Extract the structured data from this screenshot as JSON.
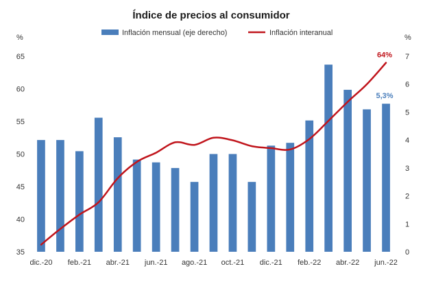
{
  "chart_data": {
    "type": "bar+line",
    "title": "Índice de precios al consumidor",
    "legend": {
      "position": "top",
      "bar_label": "Inflación mensual (eje derecho)",
      "line_label": "Inflación interanual"
    },
    "left_axis": {
      "unit": "%",
      "range": [
        35,
        65
      ],
      "ticks": [
        35,
        40,
        45,
        50,
        55,
        60,
        65
      ]
    },
    "right_axis": {
      "unit": "%",
      "range": [
        0,
        7
      ],
      "ticks": [
        0,
        1,
        2,
        3,
        4,
        5,
        6,
        7
      ]
    },
    "categories": [
      "dic.-20",
      "ene.-21",
      "feb.-21",
      "mar.-21",
      "abr.-21",
      "may.-21",
      "jun.-21",
      "jul.-21",
      "ago.-21",
      "sep.-21",
      "oct.-21",
      "nov.-21",
      "dic.-21",
      "ene.-22",
      "feb.-22",
      "mar.-22",
      "abr.-22",
      "may.-22",
      "jun.-22"
    ],
    "x_tick_labels": [
      "dic.-20",
      "feb.-21",
      "abr.-21",
      "jun.-21",
      "ago.-21",
      "oct.-21",
      "dic.-21",
      "feb.-22",
      "abr.-22",
      "jun.-22"
    ],
    "series": [
      {
        "name": "Inflación mensual (eje derecho)",
        "type": "bar",
        "axis": "right",
        "color": "#4a7ebb",
        "values": [
          4.0,
          4.0,
          3.6,
          4.8,
          4.1,
          3.3,
          3.2,
          3.0,
          2.5,
          3.5,
          3.5,
          2.5,
          3.8,
          3.9,
          4.7,
          6.7,
          5.8,
          5.1,
          5.3
        ]
      },
      {
        "name": "Inflación interanual",
        "type": "line",
        "axis": "left",
        "color": "#c0141b",
        "values": [
          36.1,
          38.5,
          40.7,
          42.6,
          46.3,
          48.8,
          50.2,
          51.8,
          51.4,
          52.5,
          52.1,
          51.2,
          50.9,
          50.7,
          52.3,
          55.1,
          58.0,
          60.7,
          64.0
        ]
      }
    ],
    "annotations": [
      {
        "text": "64%",
        "series": "Inflación interanual",
        "index": 18,
        "color": "#c0141b"
      },
      {
        "text": "5,3%",
        "series": "Inflación mensual (eje derecho)",
        "index": 18,
        "color": "#4a7ebb"
      }
    ]
  }
}
